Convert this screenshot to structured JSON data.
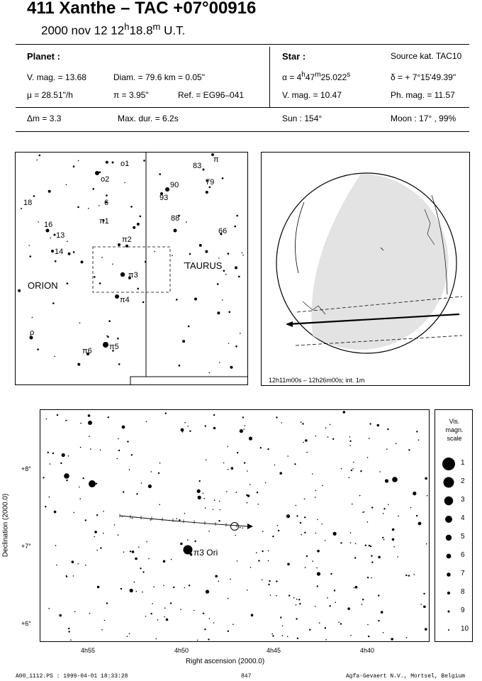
{
  "header": {
    "title": "411 Xanthe  –  TAC +07°00916",
    "date": "2000 nov 12  12",
    "hour_sup": "h",
    "minutes": "18.8",
    "min_sup": "m",
    "time_suffix": " U.T."
  },
  "planet": {
    "heading": "Planet :",
    "vmag": "V. mag. = 13.68",
    "diam": "Diam. = 79.6 km = 0.05\"",
    "mu": "μ = 28.51\"/h",
    "pi": "π =  3.95\"",
    "ref": "Ref. = EG96–041"
  },
  "star": {
    "heading": "Star :",
    "source": "Source kat.  TAC10",
    "alpha_prefix": "α = 4",
    "alpha_h": "h",
    "alpha_min": "47",
    "alpha_m": "m",
    "alpha_sec": "25.022",
    "alpha_s": "s",
    "delta": "δ = + 7°15'49.39\"",
    "vmag": "V. mag. = 10.47",
    "phmag": "Ph. mag. = 11.57"
  },
  "bottom_row": {
    "dm": "Δm = 3.3",
    "maxdur": "Max. dur. = 6.2s",
    "sun": "Sun : 154°",
    "moon": "Moon :  17° , 99%"
  },
  "finder": {
    "labels": [
      "o1",
      "o2",
      "6",
      "π1",
      "π2",
      "π3",
      "π4",
      "π5",
      "π6",
      "18",
      "16",
      "13",
      "14",
      "ρ",
      "83",
      "π",
      "90",
      "79",
      "93",
      "88",
      "66"
    ],
    "constellation_left": "ORION",
    "constellation_right": "TAURUS"
  },
  "globe": {
    "caption": "12h11m00s – 12h26m00s; int.  1m"
  },
  "detail_chart": {
    "ylabel": "Declination (2000.0)",
    "xlabel": "Right ascension (2000.0)",
    "y_ticks": [
      "+8°",
      "+7°",
      "+6°"
    ],
    "x_ticks": [
      "4h55",
      "4h50",
      "4h45",
      "4h40"
    ],
    "star_label": "π3 Ori"
  },
  "scale": {
    "title_lines": [
      "Vis.",
      "magn.",
      "scale"
    ],
    "levels": [
      "1",
      "2",
      "3",
      "4",
      "5",
      "6",
      "7",
      "8",
      "9",
      "10"
    ]
  },
  "footer": {
    "left": "A00_1112.PS : 1999-04-01 18:33:28",
    "center": "847",
    "right": "Agfa-Gevaert N.V., Mortsel, Belgium"
  }
}
